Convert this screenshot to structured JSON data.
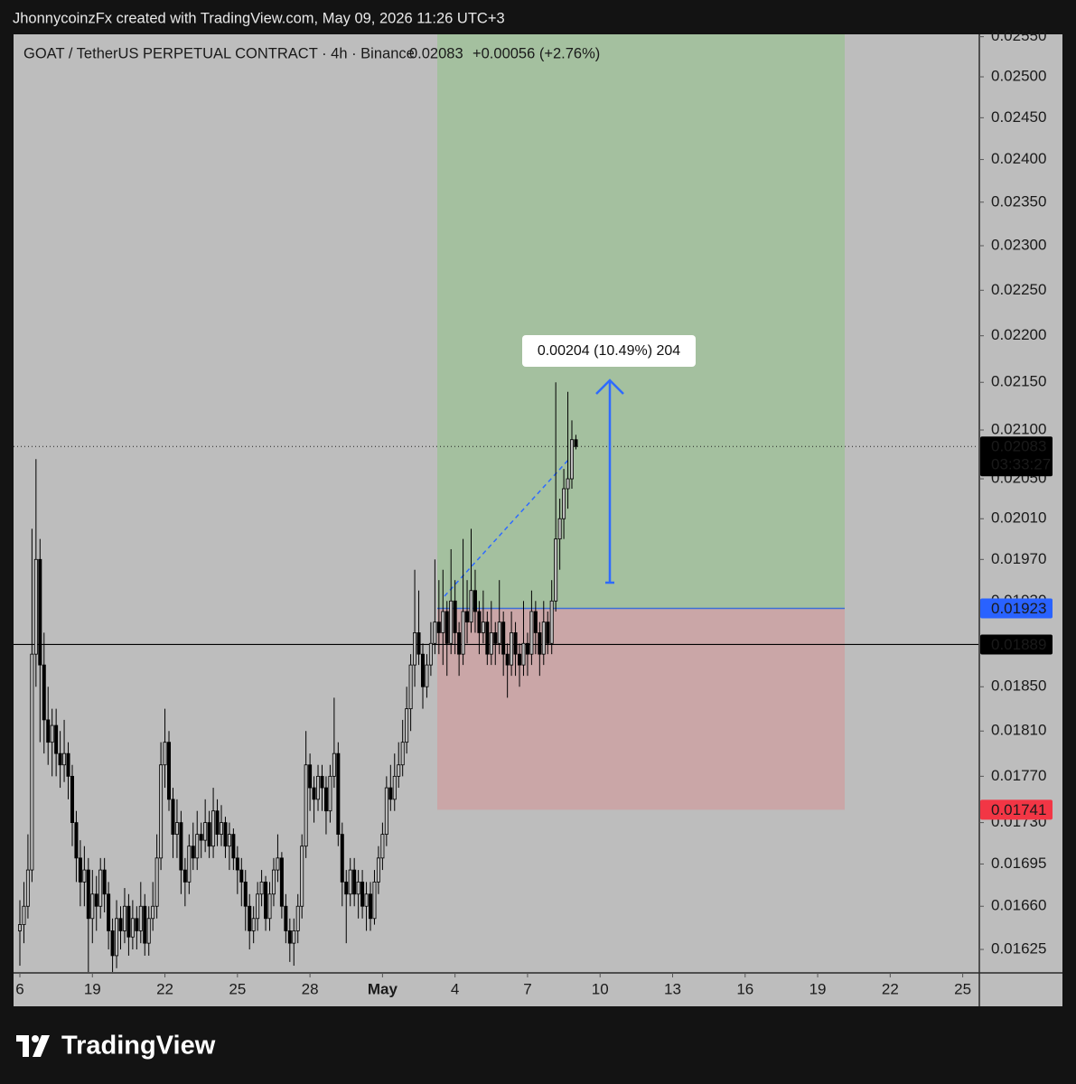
{
  "chart_data": {
    "type": "candlestick",
    "attribution": "JhonnycoinzFx created with TradingView.com, May 09, 2026 11:26 UTC+3",
    "symbol": "GOAT / TetherUS PERPETUAL CONTRACT · 4h · Binance",
    "change": "+0.00056 (+2.76%)",
    "last_price": 0.02083,
    "countdown": "03:33:27",
    "hline": 0.01889,
    "position": {
      "entry": 0.01923,
      "stop": 0.01741
    },
    "measure_label": "0.00204 (10.49%) 204",
    "brand": "TradingView",
    "log_scale": true,
    "grid": false,
    "up_color": "#bdbdbd",
    "down_color": "#000000",
    "wick_color": "#000000",
    "xlim": [
      -1.57,
      237.9
    ],
    "xticks": [
      {
        "value": 0,
        "label": "6"
      },
      {
        "value": 18,
        "label": "19"
      },
      {
        "value": 36,
        "label": "22"
      },
      {
        "value": 54,
        "label": "25"
      },
      {
        "value": 72,
        "label": "28"
      },
      {
        "value": 90,
        "label": "May"
      },
      {
        "value": 108,
        "label": "4"
      },
      {
        "value": 126,
        "label": "7"
      },
      {
        "value": 144,
        "label": "10"
      },
      {
        "value": 162,
        "label": "13"
      },
      {
        "value": 180,
        "label": "16"
      },
      {
        "value": 198,
        "label": "19"
      },
      {
        "value": 216,
        "label": "22"
      },
      {
        "value": 234,
        "label": "25"
      }
    ],
    "ylim": [
      0.01607,
      0.02553
    ],
    "yticks": [
      {
        "value": 0.0255,
        "label": "0.02550"
      },
      {
        "value": 0.025,
        "label": "0.02500"
      },
      {
        "value": 0.0245,
        "label": "0.02450"
      },
      {
        "value": 0.024,
        "label": "0.02400"
      },
      {
        "value": 0.0235,
        "label": "0.02350"
      },
      {
        "value": 0.023,
        "label": "0.02300"
      },
      {
        "value": 0.0225,
        "label": "0.02250"
      },
      {
        "value": 0.022,
        "label": "0.02200"
      },
      {
        "value": 0.0215,
        "label": "0.02150"
      },
      {
        "value": 0.021,
        "label": "0.02100"
      },
      {
        "value": 0.0205,
        "label": "0.02050"
      },
      {
        "value": 0.0201,
        "label": "0.02010"
      },
      {
        "value": 0.0197,
        "label": "0.01970"
      },
      {
        "value": 0.0193,
        "label": "0.01930"
      },
      {
        "value": 0.0185,
        "label": "0.01850"
      },
      {
        "value": 0.0181,
        "label": "0.01810"
      },
      {
        "value": 0.0177,
        "label": "0.01770"
      },
      {
        "value": 0.0173,
        "label": "0.01730"
      },
      0.01695,
      {
        "value": 0.0166,
        "label": "0.01660"
      },
      0.01625
    ],
    "ohlc": [
      [
        0.0164,
        0.01665,
        0.01612,
        0.01645
      ],
      [
        0.01645,
        0.0168,
        0.0163,
        0.0166
      ],
      [
        0.0166,
        0.0172,
        0.0165,
        0.0169
      ],
      [
        0.0169,
        0.02,
        0.0168,
        0.0188
      ],
      [
        0.0188,
        0.0207,
        0.0185,
        0.0197
      ],
      [
        0.0197,
        0.0199,
        0.018,
        0.0187
      ],
      [
        0.0187,
        0.019,
        0.0179,
        0.0182
      ],
      [
        0.0182,
        0.0185,
        0.0178,
        0.018
      ],
      [
        0.018,
        0.0183,
        0.0177,
        0.01815
      ],
      [
        0.01815,
        0.0183,
        0.0177,
        0.0179
      ],
      [
        0.0179,
        0.0181,
        0.0176,
        0.0178
      ],
      [
        0.0178,
        0.0182,
        0.01765,
        0.0179
      ],
      [
        0.0179,
        0.018,
        0.0175,
        0.0177
      ],
      [
        0.0177,
        0.0178,
        0.0171,
        0.0173
      ],
      [
        0.0173,
        0.0174,
        0.0168,
        0.017
      ],
      [
        0.017,
        0.01715,
        0.0166,
        0.0168
      ],
      [
        0.0168,
        0.0171,
        0.0166,
        0.0169
      ],
      [
        0.0169,
        0.017,
        0.01607,
        0.0165
      ],
      [
        0.0165,
        0.0169,
        0.0163,
        0.0167
      ],
      [
        0.0167,
        0.01685,
        0.0164,
        0.0166
      ],
      [
        0.0166,
        0.017,
        0.0165,
        0.0169
      ],
      [
        0.0169,
        0.017,
        0.01655,
        0.0167
      ],
      [
        0.0167,
        0.0168,
        0.01625,
        0.0164
      ],
      [
        0.0164,
        0.0165,
        0.01607,
        0.0162
      ],
      [
        0.0162,
        0.01665,
        0.0161,
        0.0165
      ],
      [
        0.0165,
        0.0166,
        0.01625,
        0.0164
      ],
      [
        0.0164,
        0.01675,
        0.0163,
        0.0166
      ],
      [
        0.0166,
        0.0167,
        0.0162,
        0.01635
      ],
      [
        0.01635,
        0.01665,
        0.01625,
        0.0165
      ],
      [
        0.0165,
        0.0166,
        0.01625,
        0.0164
      ],
      [
        0.0164,
        0.0168,
        0.0163,
        0.0166
      ],
      [
        0.0166,
        0.0167,
        0.0162,
        0.0163
      ],
      [
        0.0163,
        0.0166,
        0.0162,
        0.0165
      ],
      [
        0.0165,
        0.0168,
        0.0164,
        0.0166
      ],
      [
        0.0166,
        0.0172,
        0.0165,
        0.017
      ],
      [
        0.017,
        0.018,
        0.0169,
        0.0178
      ],
      [
        0.0178,
        0.0183,
        0.0176,
        0.018
      ],
      [
        0.018,
        0.0181,
        0.0174,
        0.0175
      ],
      [
        0.0175,
        0.0176,
        0.017,
        0.0172
      ],
      [
        0.0172,
        0.0175,
        0.017,
        0.0173
      ],
      [
        0.0173,
        0.0174,
        0.0167,
        0.0169
      ],
      [
        0.0169,
        0.017,
        0.0166,
        0.0168
      ],
      [
        0.0168,
        0.0172,
        0.0167,
        0.0171
      ],
      [
        0.0171,
        0.0173,
        0.0169,
        0.017
      ],
      [
        0.017,
        0.0174,
        0.0169,
        0.0172
      ],
      [
        0.0172,
        0.0173,
        0.017,
        0.01715
      ],
      [
        0.01715,
        0.0175,
        0.01705,
        0.0173
      ],
      [
        0.0173,
        0.0174,
        0.017,
        0.0171
      ],
      [
        0.0171,
        0.0176,
        0.017,
        0.0174
      ],
      [
        0.0174,
        0.0175,
        0.0171,
        0.0172
      ],
      [
        0.0172,
        0.01745,
        0.0171,
        0.0173
      ],
      [
        0.0173,
        0.01735,
        0.017,
        0.0171
      ],
      [
        0.0171,
        0.0173,
        0.0169,
        0.0172
      ],
      [
        0.0172,
        0.01725,
        0.0169,
        0.017
      ],
      [
        0.017,
        0.0171,
        0.0167,
        0.0169
      ],
      [
        0.0169,
        0.017,
        0.0166,
        0.0168
      ],
      [
        0.0168,
        0.0169,
        0.0164,
        0.0166
      ],
      [
        0.0166,
        0.0167,
        0.01625,
        0.0164
      ],
      [
        0.0164,
        0.0166,
        0.0163,
        0.0165
      ],
      [
        0.0165,
        0.0168,
        0.0164,
        0.0167
      ],
      [
        0.0167,
        0.0169,
        0.0166,
        0.0168
      ],
      [
        0.0168,
        0.01685,
        0.0164,
        0.0165
      ],
      [
        0.0165,
        0.0168,
        0.0164,
        0.0167
      ],
      [
        0.0167,
        0.017,
        0.0166,
        0.0169
      ],
      [
        0.0169,
        0.0172,
        0.0168,
        0.017
      ],
      [
        0.017,
        0.01705,
        0.0165,
        0.0166
      ],
      [
        0.0166,
        0.0167,
        0.0163,
        0.0164
      ],
      [
        0.0164,
        0.0165,
        0.01615,
        0.0163
      ],
      [
        0.0163,
        0.0165,
        0.01612,
        0.0164
      ],
      [
        0.0164,
        0.0167,
        0.0163,
        0.0166
      ],
      [
        0.0166,
        0.0172,
        0.0165,
        0.0171
      ],
      [
        0.0171,
        0.0181,
        0.017,
        0.0178
      ],
      [
        0.0178,
        0.0179,
        0.0174,
        0.0176
      ],
      [
        0.0176,
        0.0177,
        0.0173,
        0.0175
      ],
      [
        0.0175,
        0.0178,
        0.0174,
        0.0177
      ],
      [
        0.0177,
        0.0178,
        0.0174,
        0.0176
      ],
      [
        0.0176,
        0.0177,
        0.0172,
        0.0174
      ],
      [
        0.0174,
        0.0178,
        0.0173,
        0.0177
      ],
      [
        0.0177,
        0.0184,
        0.0176,
        0.0179
      ],
      [
        0.0179,
        0.018,
        0.0171,
        0.0172
      ],
      [
        0.0172,
        0.0173,
        0.0166,
        0.0168
      ],
      [
        0.0168,
        0.0169,
        0.0163,
        0.0167
      ],
      [
        0.0167,
        0.017,
        0.0166,
        0.0169
      ],
      [
        0.0169,
        0.017,
        0.0166,
        0.0167
      ],
      [
        0.0167,
        0.0169,
        0.0165,
        0.0168
      ],
      [
        0.0168,
        0.0169,
        0.0165,
        0.0166
      ],
      [
        0.0166,
        0.0168,
        0.0164,
        0.0167
      ],
      [
        0.0167,
        0.0168,
        0.0164,
        0.0165
      ],
      [
        0.0165,
        0.0169,
        0.01645,
        0.0168
      ],
      [
        0.0168,
        0.0171,
        0.0167,
        0.017
      ],
      [
        0.017,
        0.0173,
        0.0169,
        0.0172
      ],
      [
        0.0172,
        0.0177,
        0.0171,
        0.0176
      ],
      [
        0.0176,
        0.0178,
        0.0174,
        0.0175
      ],
      [
        0.0175,
        0.0179,
        0.0174,
        0.0177
      ],
      [
        0.0177,
        0.018,
        0.0176,
        0.0178
      ],
      [
        0.0178,
        0.0182,
        0.0177,
        0.018
      ],
      [
        0.018,
        0.0185,
        0.0179,
        0.0183
      ],
      [
        0.0183,
        0.0188,
        0.0181,
        0.0187
      ],
      [
        0.0187,
        0.0196,
        0.0185,
        0.019
      ],
      [
        0.019,
        0.0194,
        0.0187,
        0.0188
      ],
      [
        0.0188,
        0.0189,
        0.0183,
        0.0185
      ],
      [
        0.0185,
        0.0188,
        0.0184,
        0.0187
      ],
      [
        0.0187,
        0.0191,
        0.0186,
        0.0189
      ],
      [
        0.0189,
        0.0197,
        0.0188,
        0.0191
      ],
      [
        0.0191,
        0.0195,
        0.0188,
        0.019
      ],
      [
        0.019,
        0.0196,
        0.0187,
        0.0192
      ],
      [
        0.0192,
        0.0193,
        0.0186,
        0.0189
      ],
      [
        0.0189,
        0.0198,
        0.0188,
        0.0193
      ],
      [
        0.0193,
        0.0195,
        0.0188,
        0.019
      ],
      [
        0.019,
        0.0191,
        0.0186,
        0.0188
      ],
      [
        0.0188,
        0.0199,
        0.0187,
        0.0192
      ],
      [
        0.0192,
        0.0195,
        0.0189,
        0.0191
      ],
      [
        0.0191,
        0.02,
        0.019,
        0.0194
      ],
      [
        0.0194,
        0.0196,
        0.019,
        0.0192
      ],
      [
        0.0192,
        0.0193,
        0.0188,
        0.019
      ],
      [
        0.019,
        0.0194,
        0.0189,
        0.0191
      ],
      [
        0.0191,
        0.0192,
        0.0187,
        0.0188
      ],
      [
        0.0188,
        0.0193,
        0.0187,
        0.019
      ],
      [
        0.019,
        0.0191,
        0.0187,
        0.0189
      ],
      [
        0.0189,
        0.0195,
        0.0188,
        0.0191
      ],
      [
        0.0191,
        0.0192,
        0.0186,
        0.0188
      ],
      [
        0.0188,
        0.0189,
        0.0184,
        0.0187
      ],
      [
        0.0187,
        0.0192,
        0.0186,
        0.019
      ],
      [
        0.019,
        0.0191,
        0.0186,
        0.0188
      ],
      [
        0.0188,
        0.0189,
        0.0185,
        0.0187
      ],
      [
        0.0187,
        0.0193,
        0.0186,
        0.0189
      ],
      [
        0.0189,
        0.019,
        0.0186,
        0.0188
      ],
      [
        0.0188,
        0.0194,
        0.0187,
        0.0192
      ],
      [
        0.0192,
        0.0193,
        0.0188,
        0.019
      ],
      [
        0.019,
        0.0191,
        0.0186,
        0.0188
      ],
      [
        0.0188,
        0.0193,
        0.0187,
        0.0191
      ],
      [
        0.0191,
        0.0192,
        0.0188,
        0.0189
      ],
      [
        0.0189,
        0.0195,
        0.0188,
        0.0193
      ],
      [
        0.0193,
        0.0215,
        0.0192,
        0.0199
      ],
      [
        0.0199,
        0.0203,
        0.0196,
        0.0201
      ],
      [
        0.0201,
        0.0206,
        0.0199,
        0.0204
      ],
      [
        0.0204,
        0.0214,
        0.0202,
        0.0205
      ],
      [
        0.0205,
        0.0211,
        0.0204,
        0.0209
      ],
      [
        0.0209,
        0.02095,
        0.0208,
        0.02083
      ]
    ]
  }
}
